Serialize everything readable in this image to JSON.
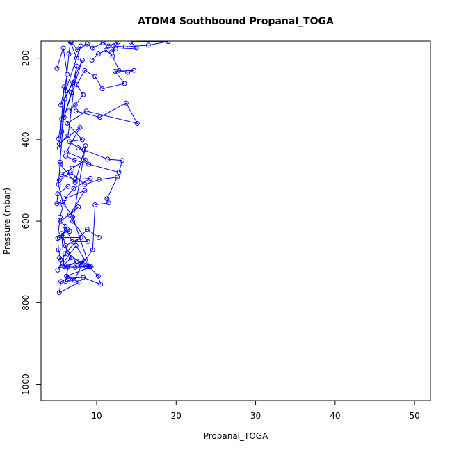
{
  "chart_data": {
    "type": "line",
    "title": "ATOM4 Southbound Propanal_TOGA",
    "xlabel": "Propanal_TOGA",
    "ylabel": "Pressure (mbar)",
    "xlim": [
      3,
      52
    ],
    "ylim": [
      1040,
      158
    ],
    "y_reversed": true,
    "xticks": [
      10,
      20,
      30,
      40,
      50
    ],
    "yticks": [
      200,
      400,
      600,
      800,
      1000
    ],
    "grid": false,
    "legend": "none",
    "series_color": "#0000ff",
    "marker": "open-circle",
    "series": [
      {
        "values": [
          [
            5.0,
            225
          ],
          [
            5.8,
            175
          ],
          [
            6.3,
            240
          ],
          [
            5.5,
            315
          ],
          [
            7.0,
            260
          ],
          [
            6.0,
            300
          ],
          [
            8.2,
            205
          ],
          [
            5.9,
            345
          ],
          [
            6.8,
            285
          ],
          [
            7.5,
            220
          ],
          [
            6.4,
            390
          ],
          [
            5.3,
            410
          ],
          [
            7.9,
            370
          ],
          [
            6.2,
            430
          ],
          [
            8.6,
            450
          ],
          [
            6.9,
            470
          ],
          [
            5.6,
            485
          ],
          [
            7.3,
            498
          ],
          [
            9.2,
            495
          ],
          [
            7.1,
            520
          ],
          [
            6.0,
            545
          ],
          [
            8.5,
            525
          ],
          [
            6.6,
            585
          ],
          [
            7.7,
            565
          ],
          [
            5.5,
            600
          ],
          [
            6.3,
            620
          ],
          [
            5.3,
            640
          ],
          [
            8.0,
            640
          ],
          [
            6.1,
            660
          ],
          [
            6.8,
            690
          ],
          [
            5.7,
            710
          ],
          [
            8.4,
            700
          ],
          [
            7.6,
            710
          ],
          [
            9.3,
            712
          ],
          [
            6.2,
            735
          ],
          [
            7.8,
            750
          ],
          [
            5.3,
            775
          ],
          [
            5.5,
            748
          ],
          [
            6.5,
            740
          ],
          [
            8.3,
            738
          ],
          [
            10.5,
            755
          ],
          [
            10.2,
            735
          ],
          [
            9.0,
            710
          ],
          [
            7.4,
            660
          ],
          [
            5.1,
            720
          ],
          [
            6.0,
            680
          ],
          [
            8.8,
            620
          ],
          [
            10.3,
            640
          ]
        ]
      },
      {
        "values": [
          [
            9.4,
            205
          ],
          [
            10.2,
            190
          ],
          [
            11.2,
            180
          ],
          [
            12.0,
            195
          ],
          [
            12.8,
            230
          ],
          [
            13.9,
            235
          ],
          [
            14.7,
            230
          ],
          [
            12.3,
            232
          ],
          [
            13.5,
            262
          ],
          [
            10.7,
            275
          ],
          [
            9.8,
            245
          ],
          [
            8.5,
            230
          ],
          [
            7.5,
            265
          ],
          [
            8.3,
            290
          ],
          [
            7.3,
            315
          ],
          [
            6.5,
            330
          ]
        ]
      },
      {
        "values": [
          [
            7.4,
            330
          ],
          [
            10.4,
            345
          ],
          [
            13.7,
            310
          ],
          [
            15.1,
            360
          ],
          [
            8.7,
            330
          ],
          [
            6.3,
            360
          ],
          [
            8.2,
            400
          ],
          [
            6.6,
            405
          ],
          [
            7.7,
            420
          ],
          [
            8.4,
            425
          ],
          [
            11.4,
            448
          ],
          [
            13.2,
            451
          ],
          [
            12.8,
            480
          ],
          [
            9.0,
            460
          ],
          [
            7.2,
            450
          ],
          [
            6.1,
            440
          ]
        ]
      },
      {
        "values": [
          [
            5.3,
            500
          ],
          [
            6.7,
            480
          ],
          [
            8.5,
            510
          ],
          [
            10.3,
            498
          ],
          [
            12.6,
            492
          ],
          [
            11.3,
            545
          ],
          [
            11.5,
            555
          ],
          [
            9.8,
            560
          ],
          [
            9.5,
            670
          ],
          [
            8.4,
            700
          ],
          [
            7.5,
            698
          ],
          [
            6.3,
            712
          ],
          [
            7.3,
            713
          ],
          [
            8.7,
            712
          ],
          [
            9.1,
            712
          ],
          [
            7.0,
            590
          ],
          [
            5.7,
            552
          ],
          [
            5.0,
            557
          ],
          [
            5.1,
            533
          ],
          [
            6.4,
            515
          ]
        ]
      },
      {
        "values": [
          [
            5.2,
            398
          ],
          [
            5.6,
            350
          ],
          [
            5.9,
            270
          ],
          [
            5.3,
            420
          ],
          [
            5.6,
            380
          ],
          [
            6.5,
            190
          ],
          [
            6.7,
            160
          ],
          [
            7.5,
            200
          ],
          [
            8.0,
            170
          ],
          [
            6.1,
            280
          ],
          [
            5.4,
            455
          ],
          [
            5.2,
            510
          ],
          [
            5.8,
            560
          ],
          [
            5.4,
            590
          ],
          [
            5.1,
            642
          ],
          [
            5.2,
            670
          ],
          [
            5.5,
            695
          ],
          [
            5.3,
            690
          ]
        ]
      },
      {
        "values": [
          [
            6.8,
            160
          ],
          [
            7.6,
            180
          ],
          [
            8.8,
            165
          ],
          [
            9.5,
            175
          ],
          [
            10.8,
            162
          ],
          [
            11.5,
            170
          ],
          [
            12.7,
            160
          ],
          [
            11.9,
            185
          ],
          [
            12.4,
            178
          ],
          [
            15.0,
            175
          ],
          [
            14.3,
            160
          ],
          [
            19.0,
            159
          ],
          [
            16.5,
            168
          ],
          [
            13.6,
            172
          ],
          [
            12.1,
            170
          ]
        ]
      },
      {
        "values": [
          [
            5.4,
            460
          ],
          [
            7.3,
            505
          ],
          [
            8.6,
            415
          ],
          [
            7.0,
            600
          ],
          [
            8.9,
            650
          ],
          [
            6.9,
            650
          ],
          [
            6.0,
            612
          ],
          [
            5.8,
            640
          ],
          [
            6.3,
            678
          ],
          [
            8.2,
            705
          ],
          [
            7.2,
            745
          ],
          [
            6.1,
            748
          ],
          [
            6.4,
            712
          ],
          [
            5.9,
            712
          ],
          [
            5.6,
            630
          ],
          [
            6.6,
            625
          ]
        ]
      }
    ]
  }
}
